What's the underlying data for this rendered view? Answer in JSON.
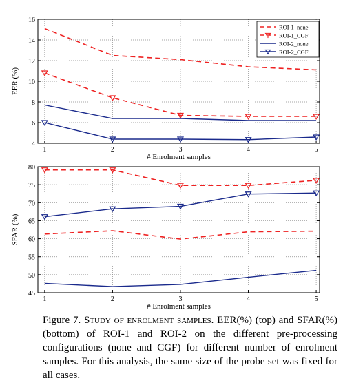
{
  "chart_data": [
    {
      "type": "line",
      "title": "",
      "xlabel": "# Enrolment samples",
      "ylabel": "EER (%)",
      "x": [
        1,
        2,
        3,
        4,
        5
      ],
      "xlim": [
        0.9,
        5.05
      ],
      "ylim": [
        4,
        16
      ],
      "x_ticks": [
        "1",
        "2",
        "3",
        "4",
        "5"
      ],
      "y_ticks": [
        "4",
        "6",
        "8",
        "10",
        "12",
        "14",
        "16"
      ],
      "grid": "dotted",
      "legend_position": "top-right",
      "series": [
        {
          "name": "ROI-1_none",
          "values": [
            15.1,
            12.5,
            12.1,
            11.4,
            11.1
          ],
          "color": "#ee2222",
          "dash": true,
          "marker": "none"
        },
        {
          "name": "ROI-1_CGF",
          "values": [
            10.8,
            8.4,
            6.7,
            6.6,
            6.6
          ],
          "color": "#ee2222",
          "dash": true,
          "marker": "triangle-down"
        },
        {
          "name": "ROI-2_none",
          "values": [
            7.7,
            6.4,
            6.4,
            6.2,
            6.2
          ],
          "color": "#1a2a8c",
          "dash": false,
          "marker": "none"
        },
        {
          "name": "ROI-2_CGF",
          "values": [
            6.0,
            4.4,
            4.4,
            4.35,
            4.6
          ],
          "color": "#1a2a8c",
          "dash": false,
          "marker": "triangle-down"
        }
      ]
    },
    {
      "type": "line",
      "title": "",
      "xlabel": "# Enrolment samples",
      "ylabel": "SFAR (%)",
      "x": [
        1,
        2,
        3,
        4,
        5
      ],
      "xlim": [
        0.9,
        5.05
      ],
      "ylim": [
        45,
        80
      ],
      "x_ticks": [
        "1",
        "2",
        "3",
        "4",
        "5"
      ],
      "y_ticks": [
        "45",
        "50",
        "55",
        "60",
        "65",
        "70",
        "75",
        "80"
      ],
      "grid": "dotted",
      "series": [
        {
          "name": "ROI-1_CGF",
          "values": [
            79.1,
            79.1,
            74.8,
            74.8,
            76.2
          ],
          "color": "#ee2222",
          "dash": true,
          "marker": "triangle-down"
        },
        {
          "name": "ROI-1_none",
          "values": [
            61.3,
            62.2,
            59.9,
            61.9,
            62.1
          ],
          "color": "#ee2222",
          "dash": true,
          "marker": "none"
        },
        {
          "name": "ROI-2_CGF",
          "values": [
            66.1,
            68.3,
            69.0,
            72.4,
            72.7
          ],
          "color": "#1a2a8c",
          "dash": false,
          "marker": "triangle-down"
        },
        {
          "name": "ROI-2_none",
          "values": [
            47.6,
            46.7,
            47.3,
            49.3,
            51.2
          ],
          "color": "#1a2a8c",
          "dash": false,
          "marker": "none"
        }
      ]
    }
  ],
  "caption": {
    "label": "Figure 7.",
    "heading": "Study of enrolment samples.",
    "text": "EER(%) (top) and SFAR(%) (bottom) of ROI-1 and ROI-2 on the different pre-processing configurations (none and CGF) for different number of enrolment samples. For this analysis, the same size of the probe set was fixed for all cases."
  }
}
